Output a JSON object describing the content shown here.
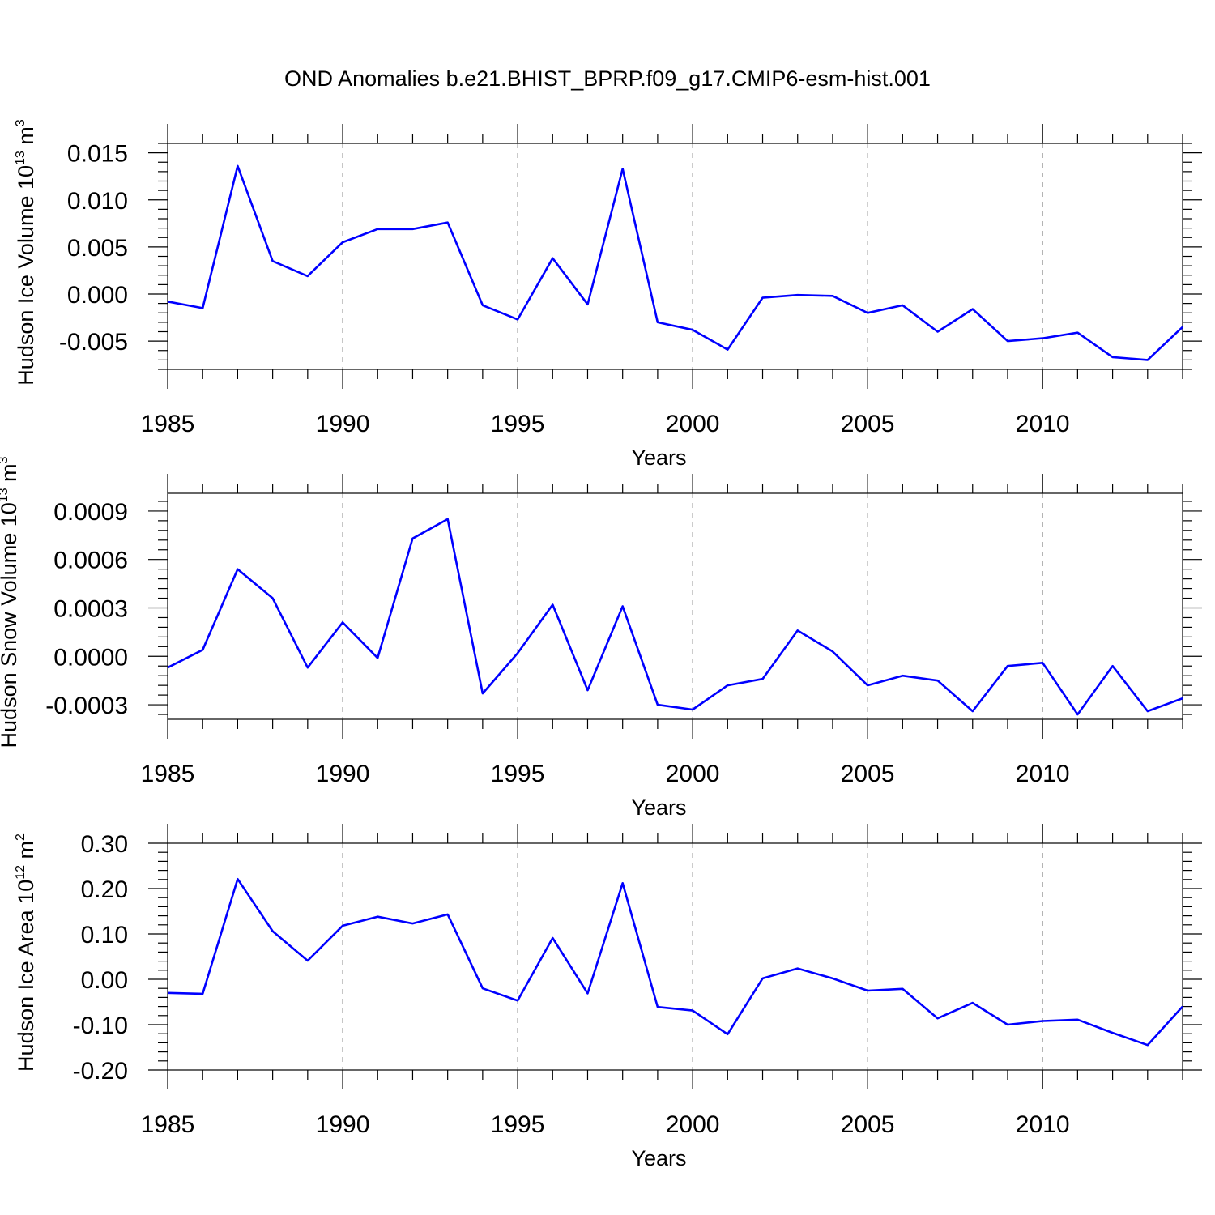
{
  "title": "OND Anomalies b.e21.BHIST_BPRP.f09_g17.CMIP6-esm-hist.001",
  "colors": {
    "line": "#0000ff",
    "grid": "#aaaaaa",
    "frame": "#000000"
  },
  "chart_data": [
    {
      "type": "line",
      "ylabel": "Hudson Ice Volume 10",
      "ylabel_exp": "13",
      "ylabel_unit": " m",
      "ylabel_unit_exp": "3",
      "xlabel": "Years",
      "xlim": [
        1985,
        2014
      ],
      "ylim": [
        -0.008,
        0.016
      ],
      "xticks": [
        "1985",
        "1990",
        "1995",
        "2000",
        "2005",
        "2010"
      ],
      "yticks": [
        {
          "v": 0.015,
          "label": "0.015"
        },
        {
          "v": 0.01,
          "label": "0.010"
        },
        {
          "v": 0.005,
          "label": "0.005"
        },
        {
          "v": 0.0,
          "label": "0.000"
        },
        {
          "v": -0.005,
          "label": "-0.005"
        }
      ],
      "x": [
        1985,
        1986,
        1987,
        1988,
        1989,
        1990,
        1991,
        1992,
        1993,
        1994,
        1995,
        1996,
        1997,
        1998,
        1999,
        2000,
        2001,
        2002,
        2003,
        2004,
        2005,
        2006,
        2007,
        2008,
        2009,
        2010,
        2011,
        2012,
        2013,
        2014
      ],
      "values": [
        -0.0008,
        -0.0015,
        0.0136,
        0.0035,
        0.0019,
        0.0055,
        0.0069,
        0.0069,
        0.0076,
        -0.0012,
        -0.0027,
        0.0038,
        -0.0011,
        0.0133,
        -0.003,
        -0.0038,
        -0.0059,
        -0.0004,
        -0.0001,
        -0.0002,
        -0.002,
        -0.0012,
        -0.004,
        -0.0016,
        -0.005,
        -0.0047,
        -0.0041,
        -0.0067,
        -0.007,
        -0.0035
      ]
    },
    {
      "type": "line",
      "ylabel": "Hudson Snow Volume 10",
      "ylabel_exp": "13",
      "ylabel_unit": " m",
      "ylabel_unit_exp": "3",
      "xlabel": "Years",
      "xlim": [
        1985,
        2014
      ],
      "ylim": [
        -0.00039,
        0.00101
      ],
      "xticks": [
        "1985",
        "1990",
        "1995",
        "2000",
        "2005",
        "2010"
      ],
      "yticks": [
        {
          "v": 0.0009,
          "label": "0.0009"
        },
        {
          "v": 0.0006,
          "label": "0.0006"
        },
        {
          "v": 0.0003,
          "label": "0.0003"
        },
        {
          "v": 0.0,
          "label": "0.0000"
        },
        {
          "v": -0.0003,
          "label": "-0.0003"
        }
      ],
      "x": [
        1985,
        1986,
        1987,
        1988,
        1989,
        1990,
        1991,
        1992,
        1993,
        1994,
        1995,
        1996,
        1997,
        1998,
        1999,
        2000,
        2001,
        2002,
        2003,
        2004,
        2005,
        2006,
        2007,
        2008,
        2009,
        2010,
        2011,
        2012,
        2013,
        2014
      ],
      "values": [
        -7e-05,
        4e-05,
        0.00054,
        0.00036,
        -7e-05,
        0.00021,
        -1e-05,
        0.00073,
        0.00085,
        -0.00023,
        2e-05,
        0.00032,
        -0.00021,
        0.00031,
        -0.0003,
        -0.00033,
        -0.00018,
        -0.00014,
        0.00016,
        3e-05,
        -0.00018,
        -0.00012,
        -0.00015,
        -0.00034,
        -6e-05,
        -4e-05,
        -0.00036,
        -6e-05,
        -0.00034,
        -0.00026
      ]
    },
    {
      "type": "line",
      "ylabel": "Hudson Ice Area 10",
      "ylabel_exp": "12",
      "ylabel_unit": " m",
      "ylabel_unit_exp": "2",
      "xlabel": "Years",
      "xlim": [
        1985,
        2014
      ],
      "ylim": [
        -0.2,
        0.3
      ],
      "xticks": [
        "1985",
        "1990",
        "1995",
        "2000",
        "2005",
        "2010"
      ],
      "yticks": [
        {
          "v": 0.3,
          "label": "0.30"
        },
        {
          "v": 0.2,
          "label": "0.20"
        },
        {
          "v": 0.1,
          "label": "0.10"
        },
        {
          "v": 0.0,
          "label": "0.00"
        },
        {
          "v": -0.1,
          "label": "-0.10"
        },
        {
          "v": -0.2,
          "label": "-0.20"
        }
      ],
      "x": [
        1985,
        1986,
        1987,
        1988,
        1989,
        1990,
        1991,
        1992,
        1993,
        1994,
        1995,
        1996,
        1997,
        1998,
        1999,
        2000,
        2001,
        2002,
        2003,
        2004,
        2005,
        2006,
        2007,
        2008,
        2009,
        2010,
        2011,
        2012,
        2013,
        2014
      ],
      "values": [
        -0.03,
        -0.032,
        0.221,
        0.106,
        0.041,
        0.118,
        0.138,
        0.123,
        0.143,
        -0.02,
        -0.047,
        0.091,
        -0.031,
        0.212,
        -0.061,
        -0.069,
        -0.121,
        0.002,
        0.024,
        0.002,
        -0.025,
        -0.021,
        -0.086,
        -0.052,
        -0.1,
        -0.092,
        -0.089,
        -0.118,
        -0.145,
        -0.06
      ]
    }
  ]
}
